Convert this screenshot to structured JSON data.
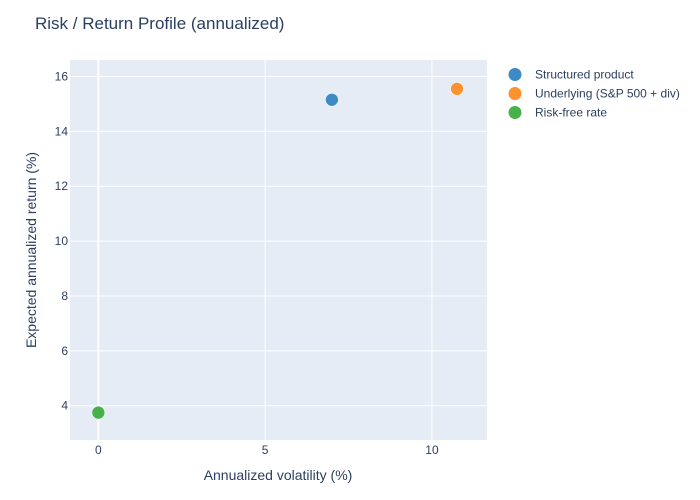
{
  "chart_data": {
    "type": "scatter",
    "title": "Risk / Return Profile (annualized)",
    "xlabel": "Annualized volatility (%)",
    "ylabel": "Expected annualized return (%)",
    "xlim": [
      -0.85,
      11.65
    ],
    "ylim": [
      2.75,
      16.6
    ],
    "xticks": [
      0,
      5,
      10
    ],
    "yticks": [
      4,
      6,
      8,
      10,
      12,
      14,
      16
    ],
    "grid": true,
    "plot_background": "#e5ecf6",
    "grid_color": "#ffffff",
    "legend_position": "top-right, outside plot",
    "series": [
      {
        "name": "Structured product",
        "color": "#3d8bc4",
        "x": [
          7.0
        ],
        "y": [
          15.15
        ]
      },
      {
        "name": "Underlying (S&P 500 + div)",
        "color": "#ff922f",
        "x": [
          10.75
        ],
        "y": [
          15.55
        ]
      },
      {
        "name": "Risk-free rate",
        "color": "#47b24a",
        "x": [
          0.0
        ],
        "y": [
          3.75
        ]
      }
    ]
  }
}
